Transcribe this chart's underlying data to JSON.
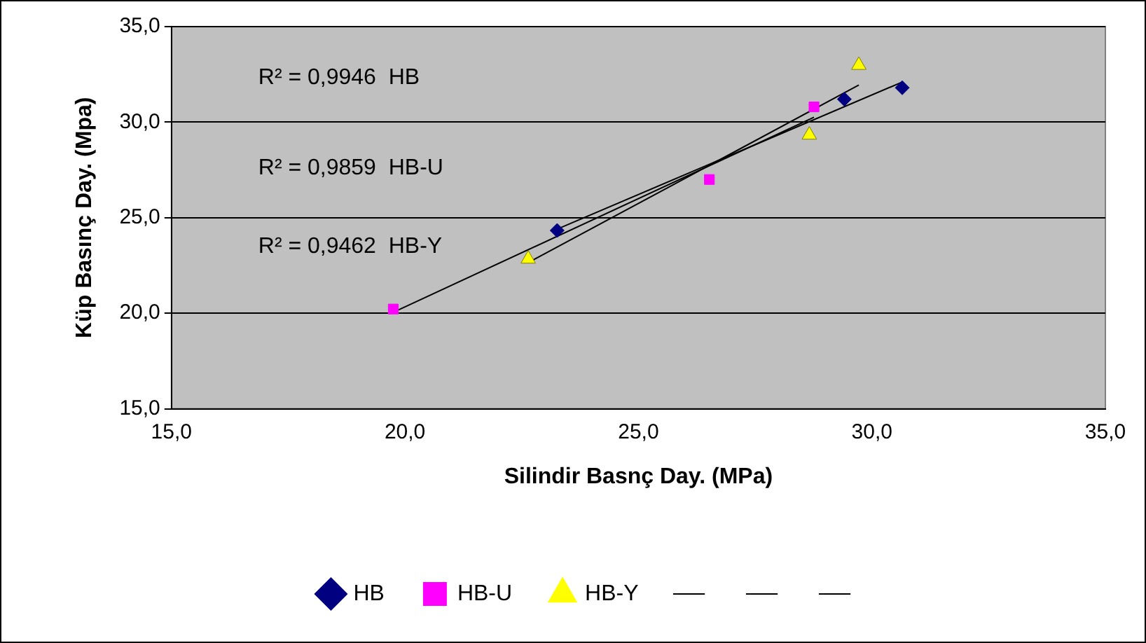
{
  "chart_data": {
    "type": "scatter",
    "xlabel": "Silindir Basnç Day. (MPa)",
    "ylabel": "Küp Basınç Day. (Mpa)",
    "xlim": [
      15,
      35
    ],
    "ylim": [
      15,
      35
    ],
    "xticks": [
      {
        "value": 15,
        "label": "15,0"
      },
      {
        "value": 20,
        "label": "20,0"
      },
      {
        "value": 25,
        "label": "25,0"
      },
      {
        "value": 30,
        "label": "30,0"
      },
      {
        "value": 35,
        "label": "35,0"
      }
    ],
    "yticks": [
      {
        "value": 15,
        "label": "15,0"
      },
      {
        "value": 20,
        "label": "20,0"
      },
      {
        "value": 25,
        "label": "25,0"
      },
      {
        "value": 30,
        "label": "30,0"
      },
      {
        "value": 35,
        "label": "35,0"
      }
    ],
    "grid": "y",
    "legend": "bottom",
    "annotations": [
      "R² = 0,9946  HB",
      "R² = 0,9859  HB-U",
      "R² = 0,9462  HB-Y"
    ],
    "series": [
      {
        "name": "HB",
        "color": "#000080",
        "marker": "diamond",
        "x": [
          23.26,
          29.41,
          30.65
        ],
        "values": [
          24.33,
          31.2,
          31.8
        ]
      },
      {
        "name": "HB-U",
        "color": "#ff00ff",
        "marker": "square",
        "x": [
          19.75,
          26.52,
          28.76
        ],
        "values": [
          20.22,
          27.0,
          30.8
        ]
      },
      {
        "name": "HB-Y",
        "color": "#ffff00",
        "marker": "triangle",
        "x": [
          22.64,
          28.66,
          29.72
        ],
        "values": [
          22.84,
          29.33,
          32.98
        ]
      },
      {
        "type": "line",
        "color": "#000000",
        "marker": "none",
        "x": [
          23.26,
          30.65
        ],
        "values": [
          24.4,
          32.1
        ]
      },
      {
        "type": "line",
        "color": "#000000",
        "marker": "none",
        "x": [
          19.75,
          28.76
        ],
        "values": [
          20.05,
          30.26
        ]
      },
      {
        "type": "line",
        "color": "#000000",
        "marker": "none",
        "x": [
          22.64,
          29.72
        ],
        "values": [
          22.65,
          31.94
        ]
      }
    ]
  }
}
